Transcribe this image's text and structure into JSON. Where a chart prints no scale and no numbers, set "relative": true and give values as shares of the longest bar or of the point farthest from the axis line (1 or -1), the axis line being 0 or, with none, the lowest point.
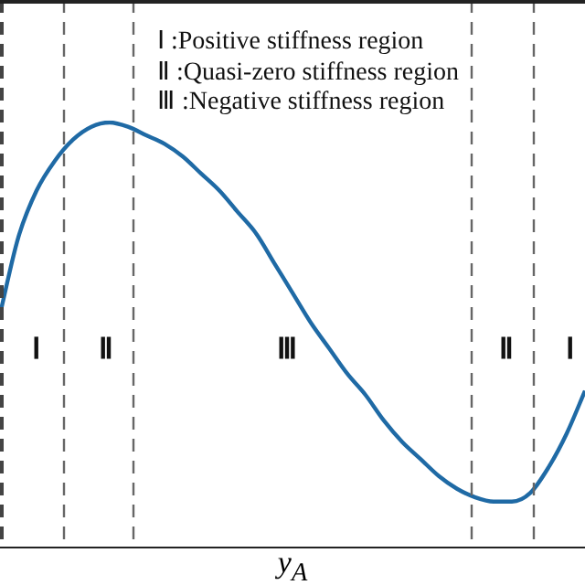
{
  "chart_data": {
    "type": "line",
    "relative": true,
    "xlabel": "y$_{A}$",
    "categories": [
      null,
      null,
      null,
      null,
      null,
      null,
      null,
      null,
      null,
      null,
      null,
      null,
      null,
      null,
      null,
      null,
      null,
      null,
      null,
      null,
      null,
      null,
      null,
      null,
      null,
      null,
      null,
      null,
      null,
      null,
      null,
      null,
      null
    ],
    "series": [
      {
        "color": "#1f6aa5",
        "values": [
          0.55,
          0.73,
          0.84,
          0.91,
          0.96,
          0.99,
          1,
          0.99,
          0.97,
          0.95,
          0.92,
          0.88,
          0.84,
          0.79,
          0.74,
          0.67,
          0.6,
          0.53,
          0.47,
          0.41,
          0.36,
          0.3,
          0.25,
          0.21,
          0.17,
          0.14,
          0.12,
          0.11,
          0.11,
          0.13,
          0.19,
          0.27,
          0.37
        ]
      }
    ],
    "annotations": [
      "Ⅰ :Positive stiffness region",
      "Ⅱ :Quasi-zero stiffness region",
      "Ⅲ :Negative stiffness region",
      "Ⅰ",
      "Ⅱ",
      "Ⅲ",
      "Ⅱ",
      "Ⅰ"
    ],
    "marker": "none",
    "line_style": "solid",
    "grid": false,
    "legend": false
  }
}
